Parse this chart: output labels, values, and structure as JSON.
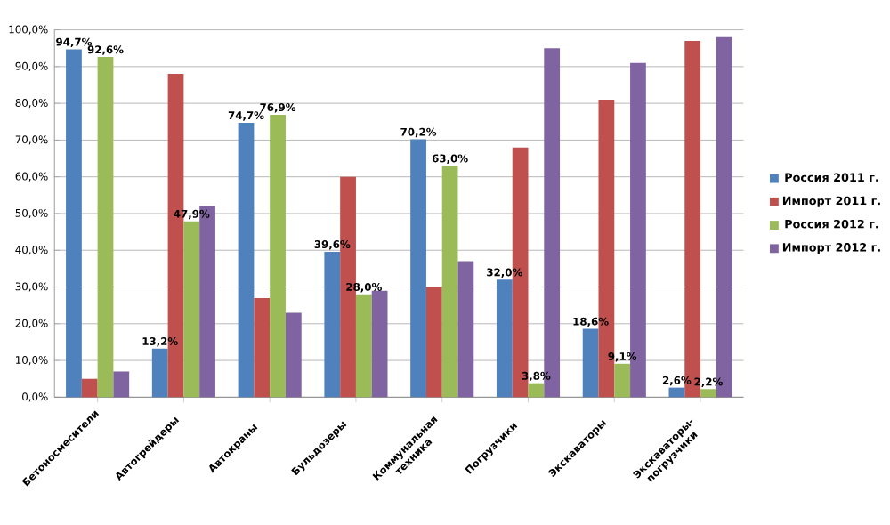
{
  "chart_data": {
    "type": "bar",
    "categories": [
      "Бетоносмесители",
      "Автогрейдеры",
      "Автокраны",
      "Бульдозеры",
      "Коммунальная техника",
      "Погрузчики",
      "Экскаваторы",
      "Экскаваторы-погрузчики"
    ],
    "series": [
      {
        "name": "Россия 2011 г.",
        "color": "#4f81bd",
        "values": [
          94.7,
          13.2,
          74.7,
          39.6,
          70.2,
          32.0,
          18.6,
          2.6
        ],
        "value_labels": [
          "94,7%",
          "13,2%",
          "74,7%",
          "39,6%",
          "70,2%",
          "32,0%",
          "18,6%",
          "2,6%"
        ]
      },
      {
        "name": "Импорт 2011 г.",
        "color": "#c0504d",
        "values": [
          5,
          88,
          27,
          60,
          30,
          68,
          81,
          97
        ]
      },
      {
        "name": "Россия 2012 г.",
        "color": "#9bbb59",
        "values": [
          92.6,
          47.9,
          76.9,
          28.0,
          63.0,
          3.8,
          9.1,
          2.2
        ],
        "value_labels": [
          "92,6%",
          "47,9%",
          "76,9%",
          "28,0%",
          "63,0%",
          "3,8%",
          "9,1%",
          "2,2%"
        ]
      },
      {
        "name": "Импорт 2012 г.",
        "color": "#8064a2",
        "values": [
          7,
          52,
          23,
          29,
          37,
          95,
          91,
          98
        ]
      }
    ],
    "ylim": [
      0,
      100
    ],
    "yticks": [
      {
        "value": 0,
        "label": "0,0%"
      },
      {
        "value": 10,
        "label": "10,0%"
      },
      {
        "value": 20,
        "label": "20,0%"
      },
      {
        "value": 30,
        "label": "30,0%"
      },
      {
        "value": 40,
        "label": "40,0%"
      },
      {
        "value": 50,
        "label": "50,0%"
      },
      {
        "value": 60,
        "label": "60,0%"
      },
      {
        "value": 70,
        "label": "70,0%"
      },
      {
        "value": 80,
        "label": "80,0%"
      },
      {
        "value": 90,
        "label": "90,0%"
      },
      {
        "value": 100,
        "label": "100,0%"
      }
    ],
    "grid": "y",
    "legend": "right"
  }
}
